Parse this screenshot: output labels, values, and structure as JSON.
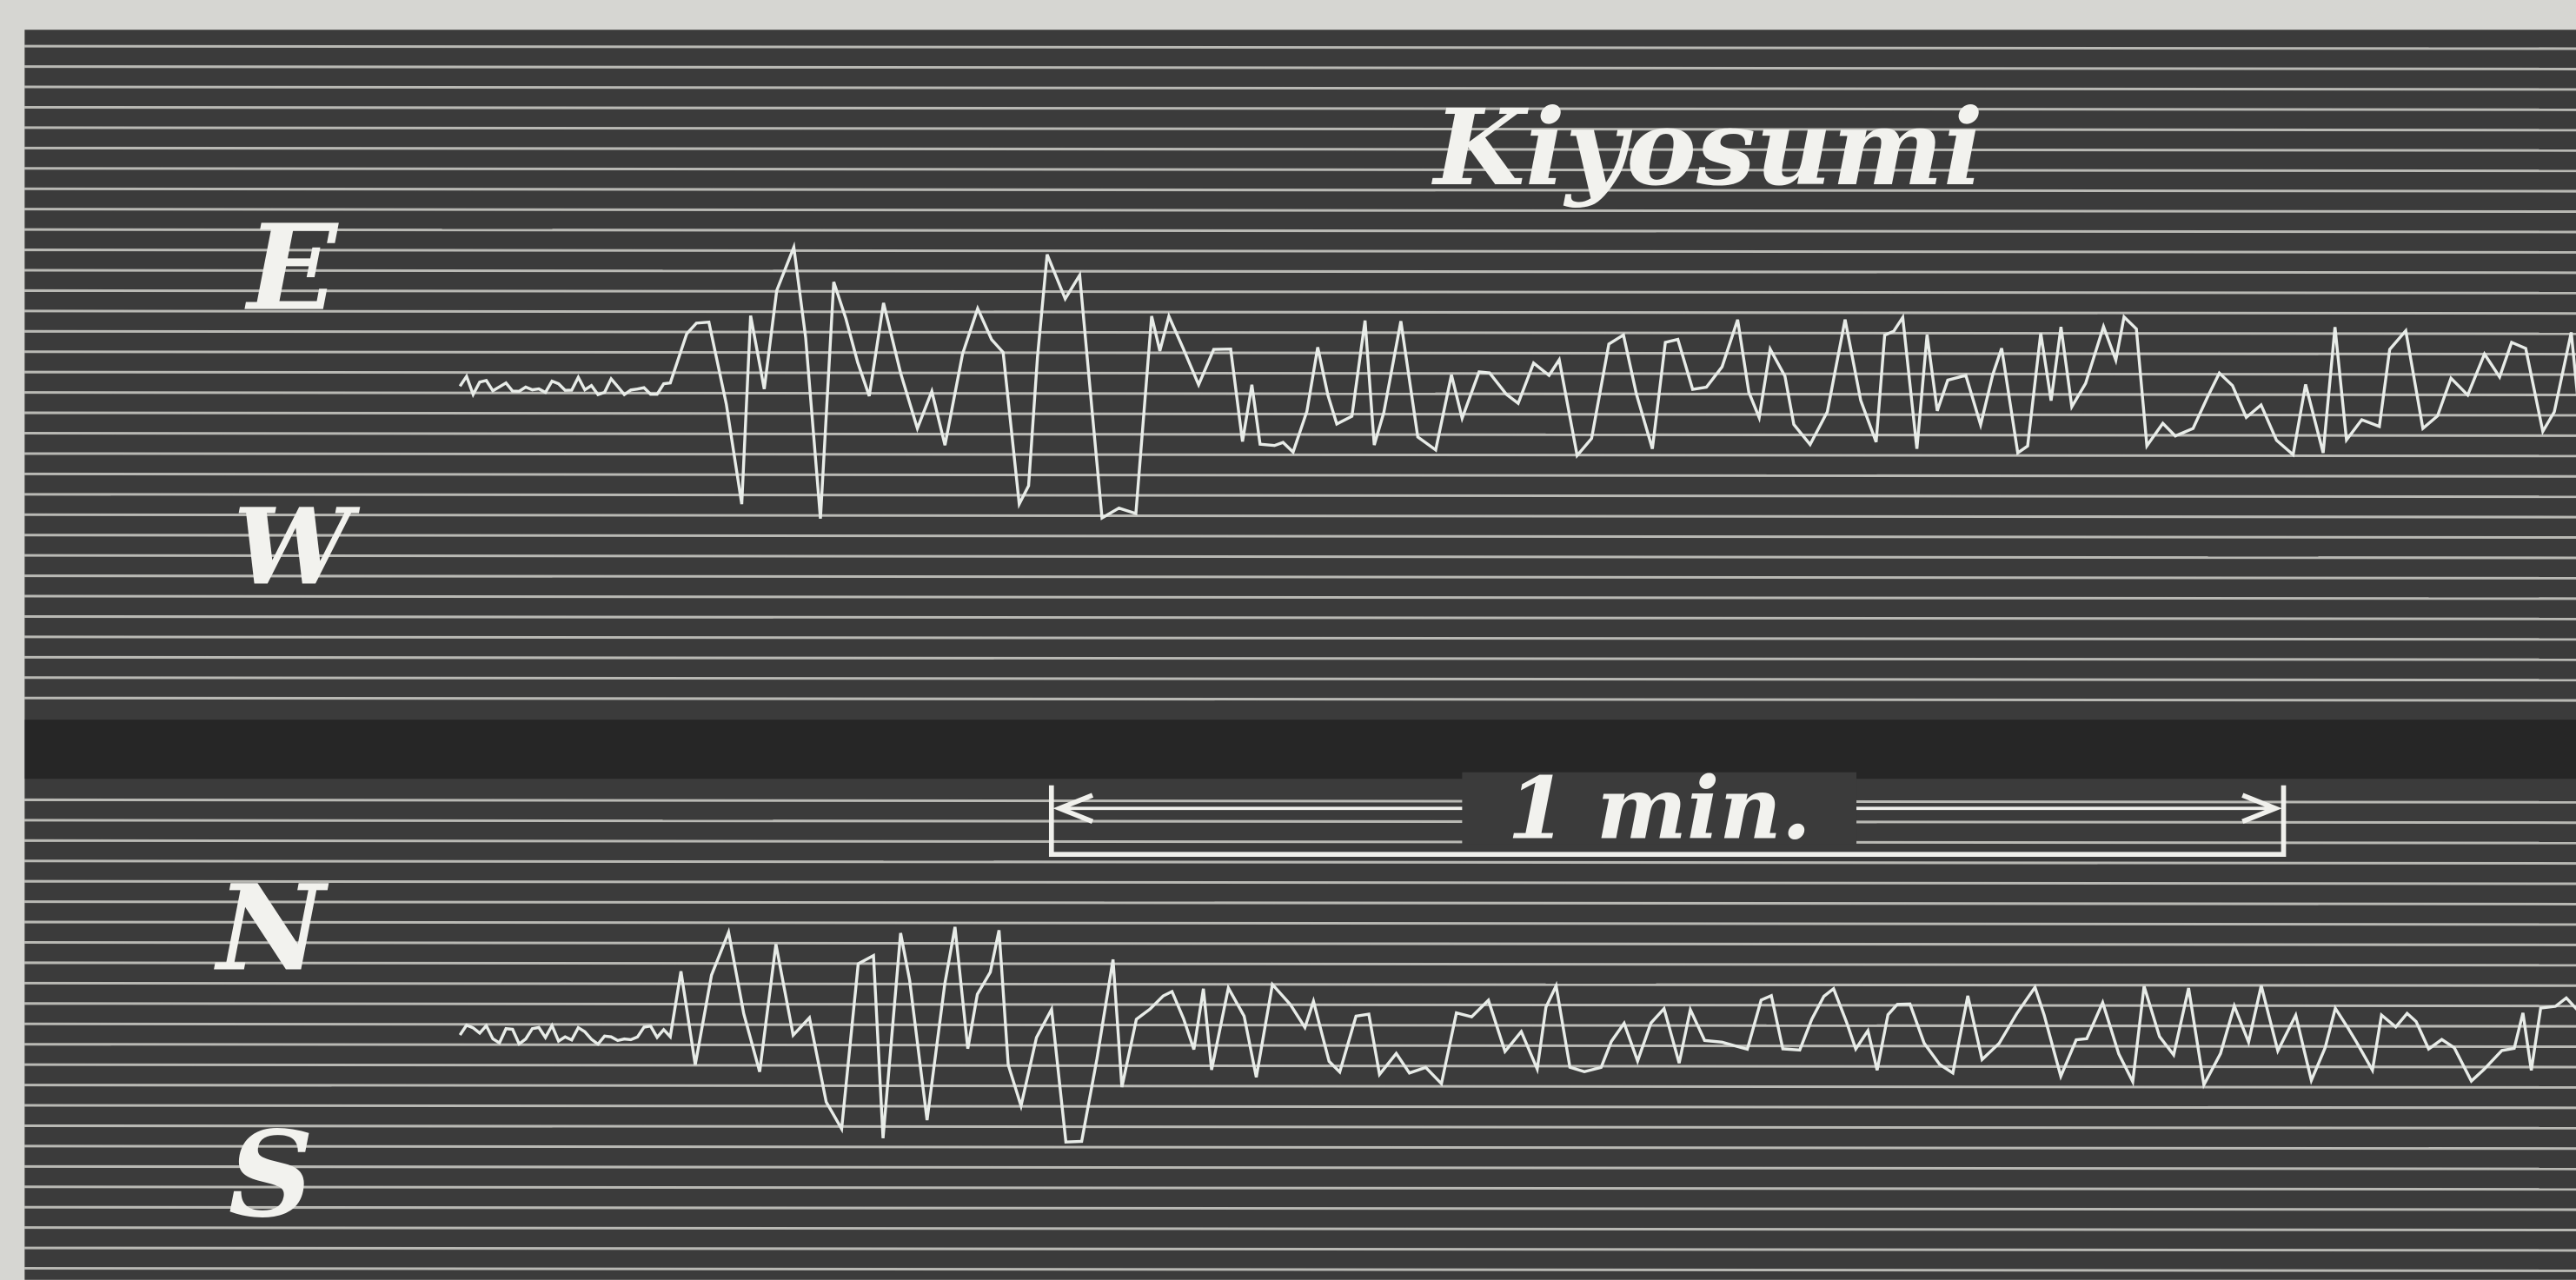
{
  "figure": {
    "station": "Kiyosumi",
    "components": {
      "top": "E",
      "top_bottom": "W",
      "bottom_top": "N",
      "bottom": "S"
    },
    "time_scale": "1 min."
  }
}
